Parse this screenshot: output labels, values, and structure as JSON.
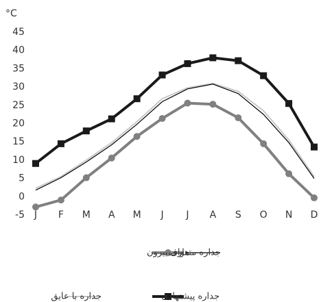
{
  "chart_data": {
    "type": "line",
    "y_unit": "°C",
    "categories": [
      "J",
      "F",
      "M",
      "A",
      "M",
      "J",
      "J",
      "A",
      "S",
      "O",
      "N",
      "D"
    ],
    "series": [
      {
        "name": "هوای بیرون",
        "color": "#808080",
        "marker": "circle",
        "width": 4,
        "values": [
          -2.8,
          -0.9,
          5.2,
          10.6,
          16.5,
          21.4,
          25.6,
          25.3,
          21.6,
          14.5,
          6.3,
          -0.3
        ]
      },
      {
        "name": "جداره متعارف",
        "color": "#000000",
        "marker": "none",
        "width": 1.2,
        "values": [
          1.8,
          5.2,
          9.5,
          14.2,
          19.8,
          26.0,
          29.5,
          30.8,
          28.2,
          22.5,
          14.8,
          5.0
        ]
      },
      {
        "name": "جداره با عایق",
        "color": "#c8c8c8",
        "marker": "none",
        "width": 2,
        "values": [
          2.3,
          5.5,
          10.0,
          14.8,
          20.5,
          26.8,
          29.8,
          31.0,
          28.8,
          23.5,
          15.5,
          5.5
        ]
      },
      {
        "name": "جداره  پیشنهادی",
        "color": "#1a1a1a",
        "marker": "square",
        "width": 4,
        "values": [
          9.1,
          14.5,
          18.0,
          21.3,
          26.8,
          33.3,
          36.4,
          38.0,
          37.2,
          33.1,
          25.5,
          13.6
        ]
      }
    ],
    "ylim": [
      -5,
      45
    ],
    "yticks": [
      -5,
      0,
      5,
      10,
      15,
      20,
      25,
      30,
      35,
      40,
      45
    ],
    "grid": false
  }
}
